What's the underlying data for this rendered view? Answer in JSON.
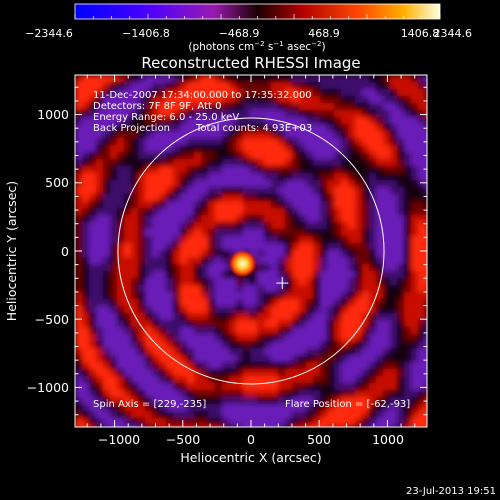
{
  "colorbar": {
    "ticks": [
      "−2344.6",
      "−1406.8",
      "−468.9",
      "468.9",
      "1406.8",
      "2344.6"
    ],
    "units_main": "(photons cm",
    "units_exp1": "−2",
    "units_mid": " s",
    "units_exp2": "−1",
    "units_end": " asec",
    "units_exp3": "−2",
    "units_close": ")",
    "range": [
      -2344.6,
      2344.6
    ]
  },
  "chart_data": {
    "type": "heatmap",
    "title": "Reconstructed RHESSI Image",
    "xlabel": "Heliocentric X (arcsec)",
    "ylabel": "Heliocentric Y (arcsec)",
    "xlim": [
      -1290,
      1290
    ],
    "ylim": [
      -1290,
      1290
    ],
    "x_ticks": [
      "−1000",
      "−500",
      "0",
      "500",
      "1000"
    ],
    "x_tick_values": [
      -1000,
      -500,
      0,
      500,
      1000
    ],
    "y_ticks": [
      "1000",
      "500",
      "0",
      "−500",
      "−1000"
    ],
    "y_tick_values": [
      1000,
      500,
      0,
      -500,
      -1000
    ],
    "solar_limb_radius_arcsec": 975,
    "solar_disk_center": [
      0,
      0
    ],
    "flare_source": {
      "x": -62,
      "y": -93
    },
    "marker": {
      "x": 229,
      "y": -235
    },
    "annotations": [
      "11-Dec-2007 17:34:00.000 to 17:35:32.000",
      "Detectors: 7F 8F 9F, Att 0",
      "Energy Range: 6.0 - 25.0 keV",
      "Back Projection",
      "Total counts: 4.93E+03"
    ],
    "spin_axis": "Spin Axis = [229,-235]",
    "flare_position": "Flare Position = [-62,-93]"
  },
  "footer": {
    "timestamp": "23-Jul-2013 19:51"
  }
}
